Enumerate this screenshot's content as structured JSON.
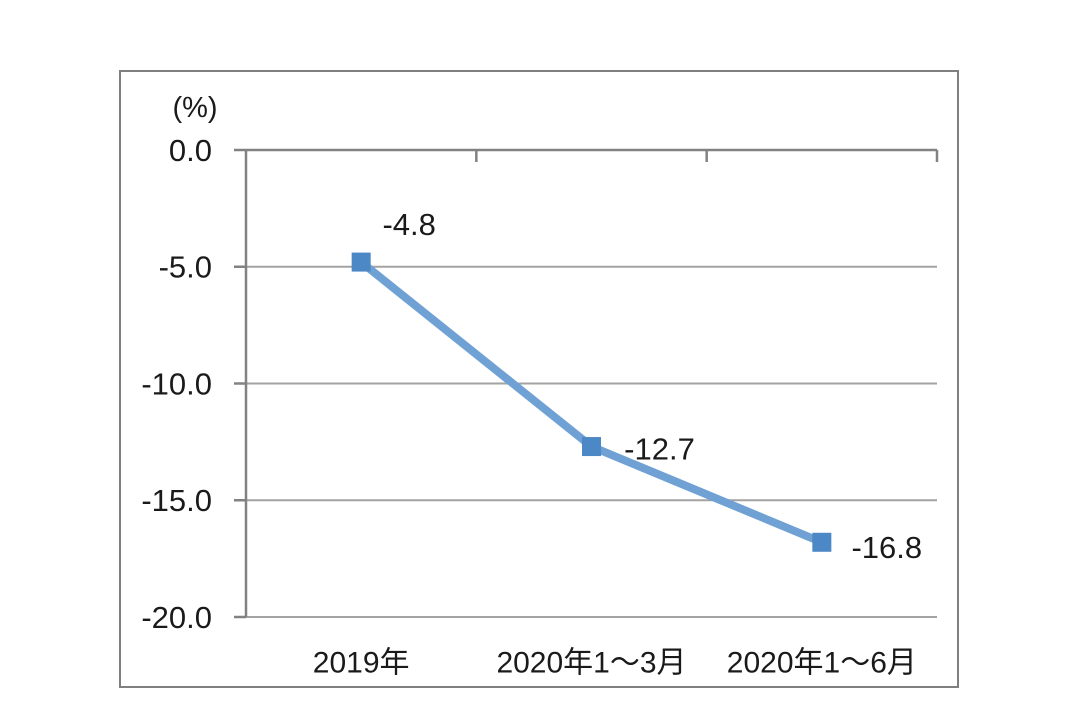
{
  "page": {
    "background": "#ffffff"
  },
  "chart_data": {
    "type": "line",
    "title": "",
    "unit_label": "(%)",
    "categories": [
      "2019年",
      "2020年1～3月",
      "2020年1～6月"
    ],
    "values": [
      -4.8,
      -12.7,
      -16.8
    ],
    "data_labels": [
      "-4.8",
      "-12.7",
      "-16.8"
    ],
    "ytick_values": [
      0,
      -5,
      -10,
      -15,
      -20
    ],
    "ytick_labels": [
      "0.0",
      "-5.0",
      "-10.0",
      "-15.0",
      "-20.0"
    ],
    "ylim": [
      -20,
      0
    ],
    "grid": true,
    "legend_position": "none",
    "marker_shape": "square",
    "colors": {
      "line": "#6FA1D4",
      "marker": "#4C88C6",
      "gridline": "#A3A3A3",
      "axis": "#828282",
      "border": "#7F7F7F",
      "text": "#1A1A1A"
    }
  }
}
